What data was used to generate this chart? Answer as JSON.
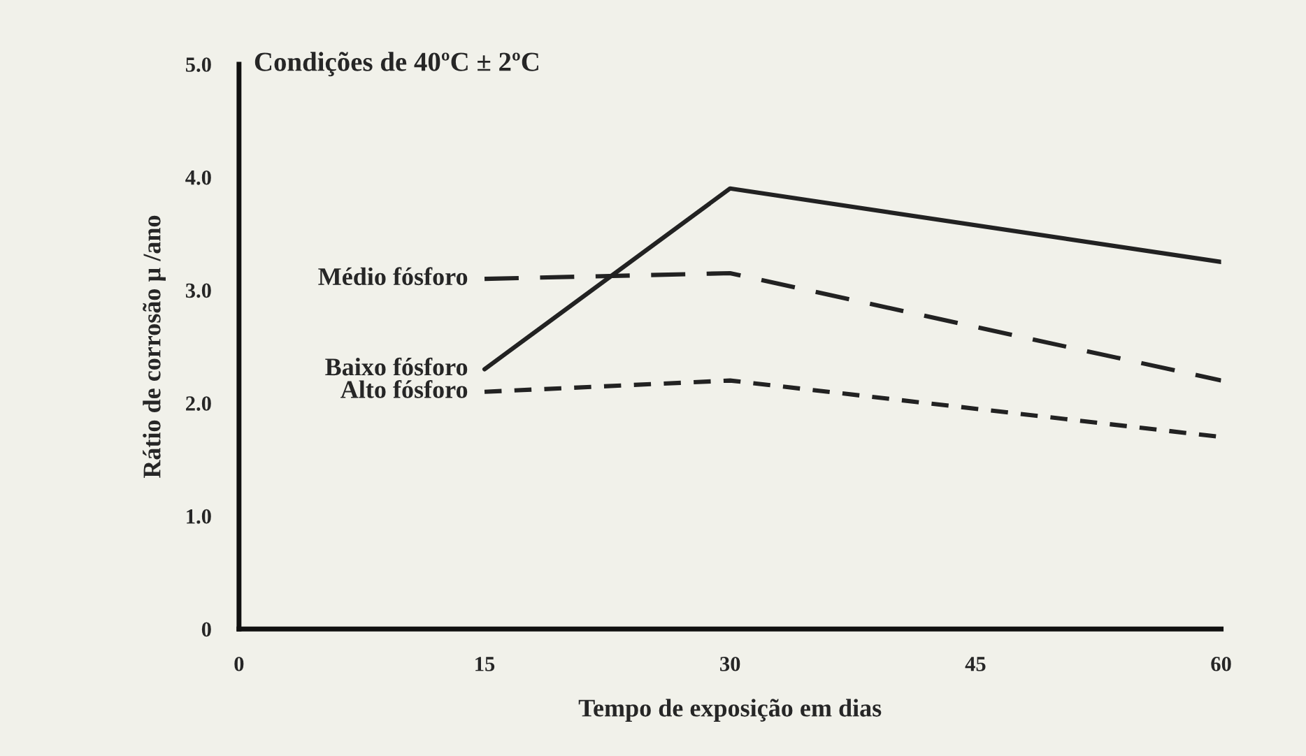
{
  "chart_data": {
    "type": "line",
    "title": "Condições de 40ºC ± 2ºC",
    "xlabel": "Tempo de exposição em dias",
    "ylabel": "Rátio de corrosão µ /ano",
    "x": [
      15,
      30,
      60
    ],
    "series": [
      {
        "name": "Médio fósforo",
        "color": "#222222",
        "values": [
          3.1,
          3.15,
          2.2
        ],
        "line_style": "dashed"
      },
      {
        "name": "Baixo fósforo",
        "color": "#222222",
        "values": [
          2.3,
          3.9,
          3.25
        ],
        "line_style": "solid"
      },
      {
        "name": "Alto fósforo",
        "color": "#222222",
        "values": [
          2.1,
          2.2,
          1.7
        ],
        "line_style": "dotted"
      }
    ],
    "xlim": [
      0,
      60
    ],
    "ylim": [
      0,
      5.0
    ],
    "xticks": [
      0,
      15,
      30,
      45,
      60
    ],
    "yticks": [
      0,
      {
        "value": 1,
        "label": "1.0"
      },
      {
        "value": 2,
        "label": "2.0"
      },
      {
        "value": 3,
        "label": "3.0"
      },
      {
        "value": 4,
        "label": "4.0"
      },
      {
        "value": 5,
        "label": "5.0"
      }
    ],
    "grid": false,
    "legend": false,
    "marker": "none"
  }
}
